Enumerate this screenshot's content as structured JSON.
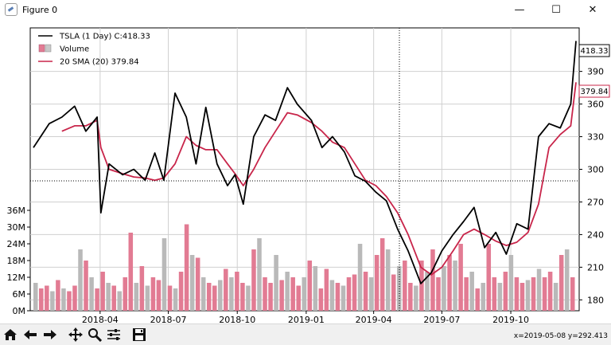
{
  "window": {
    "title": "Figure 0",
    "minimize_glyph": "—",
    "maximize_glyph": "☐",
    "close_glyph": "✕"
  },
  "legend": {
    "price": "TSLA (1 Day) C:418.33",
    "volume": "Volume",
    "sma": "20 SMA (20) 379.84"
  },
  "status": {
    "coordinates": "x=2019-05-08 y=292.413"
  },
  "toolbar": {
    "buttons": [
      "home-icon",
      "back-arrow-icon",
      "forward-arrow-icon",
      "pan-icon",
      "zoom-icon",
      "configure-subplots-icon",
      "save-icon"
    ]
  },
  "colors": {
    "price_line": "#000000",
    "sma_line": "#c8254a",
    "volume_up": "#e27b93",
    "volume_down": "#b9b9b9"
  },
  "chart_data": [
    {
      "type": "line",
      "ylim": [
        170,
        430
      ],
      "yticks": [
        180,
        210,
        240,
        270,
        300,
        330,
        360,
        390
      ],
      "last_price_label": "418.33",
      "last_sma_label": "379.84",
      "crosshair": {
        "date": "2019-05-08",
        "price": 292.413
      },
      "x": [
        "2018-01-02",
        "2018-01-23",
        "2018-02-09",
        "2018-02-26",
        "2018-03-13",
        "2018-03-28",
        "2018-04-02",
        "2018-04-13",
        "2018-05-01",
        "2018-05-16",
        "2018-05-31",
        "2018-06-13",
        "2018-06-25",
        "2018-07-10",
        "2018-07-25",
        "2018-08-07",
        "2018-08-20",
        "2018-09-04",
        "2018-09-18",
        "2018-09-28",
        "2018-10-09",
        "2018-10-23",
        "2018-11-07",
        "2018-11-21",
        "2018-12-07",
        "2018-12-20",
        "2019-01-08",
        "2019-01-22",
        "2019-02-05",
        "2019-02-21",
        "2019-03-07",
        "2019-03-21",
        "2019-04-04",
        "2019-04-18",
        "2019-05-03",
        "2019-05-17",
        "2019-06-03",
        "2019-06-17",
        "2019-07-01",
        "2019-07-16",
        "2019-07-30",
        "2019-08-13",
        "2019-08-27",
        "2019-09-11",
        "2019-09-25",
        "2019-10-09",
        "2019-10-24",
        "2019-11-07",
        "2019-11-21",
        "2019-12-06",
        "2019-12-20",
        "2019-12-27"
      ],
      "series": [
        {
          "name": "TSLA (1 Day) C:418.33",
          "values": [
            320,
            342,
            348,
            358,
            335,
            348,
            260,
            305,
            295,
            300,
            290,
            315,
            290,
            370,
            348,
            305,
            357,
            305,
            285,
            295,
            268,
            330,
            350,
            345,
            375,
            360,
            345,
            320,
            330,
            316,
            294,
            289,
            279,
            271,
            245,
            225,
            195,
            205,
            225,
            240,
            252,
            265,
            228,
            242,
            222,
            250,
            245,
            330,
            342,
            338,
            360,
            418
          ]
        },
        {
          "name": "20 SMA (20) 379.84",
          "values": [
            null,
            null,
            335,
            340,
            340,
            345,
            320,
            300,
            296,
            293,
            292,
            290,
            292,
            305,
            330,
            322,
            318,
            318,
            305,
            296,
            285,
            300,
            320,
            335,
            352,
            350,
            343,
            335,
            325,
            320,
            305,
            290,
            285,
            275,
            260,
            240,
            210,
            203,
            210,
            225,
            240,
            245,
            240,
            234,
            230,
            233,
            242,
            268,
            320,
            332,
            340,
            380
          ]
        }
      ]
    },
    {
      "type": "bar",
      "ylim": [
        0,
        40
      ],
      "yticks_labels": [
        "0M",
        "6M",
        "12M",
        "18M",
        "24M",
        "30M",
        "36M"
      ],
      "xtick_labels": [
        "2018-04",
        "2018-07",
        "2018-10",
        "2019-01",
        "2019-04",
        "2019-07",
        "2019-10"
      ],
      "name": "Volume",
      "values": [
        10,
        8,
        9,
        7,
        11,
        8,
        7,
        9,
        22,
        18,
        12,
        8,
        14,
        10,
        9,
        7,
        12,
        28,
        10,
        16,
        9,
        12,
        11,
        26,
        9,
        8,
        14,
        31,
        20,
        19,
        12,
        10,
        9,
        11,
        15,
        12,
        14,
        10,
        9,
        22,
        26,
        12,
        10,
        20,
        11,
        14,
        12,
        9,
        12,
        18,
        16,
        8,
        15,
        11,
        10,
        9,
        12,
        13,
        24,
        14,
        12,
        20,
        26,
        22,
        13,
        16,
        18,
        10,
        9,
        18,
        14,
        22,
        12,
        16,
        20,
        18,
        24,
        12,
        14,
        8,
        10,
        24,
        12,
        10,
        14,
        20,
        12,
        10,
        11,
        12,
        15,
        12,
        14,
        10,
        20,
        22,
        12
      ]
    }
  ]
}
